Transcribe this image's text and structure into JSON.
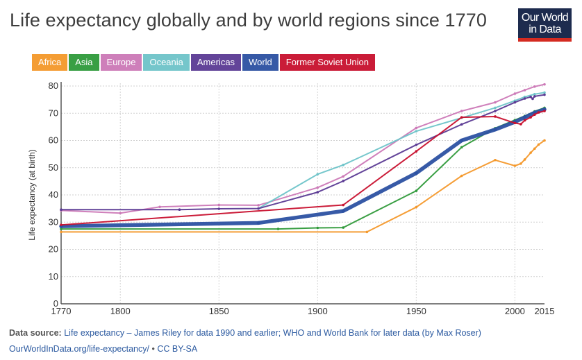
{
  "header": {
    "title": "Life expectancy globally and by world regions since 1770",
    "logo_line1": "Our World",
    "logo_line2": "in Data"
  },
  "footer": {
    "source_label": "Data source:",
    "source_text": "Life expectancy – James Riley for data 1990 and earlier; WHO and World Bank for later data (by Max Roser)",
    "link_text": "OurWorldInData.org/life-expectancy/",
    "separator": "•",
    "license": "CC BY-SA"
  },
  "chart_data": {
    "type": "line",
    "title": "Life expectancy globally and by world regions since 1770",
    "xlabel": "",
    "ylabel": "Life expectancy (at birth)",
    "xlim": [
      1770,
      2015
    ],
    "ylim": [
      0,
      80
    ],
    "x_ticks": [
      1770,
      1800,
      1850,
      1900,
      1950,
      2000,
      2015
    ],
    "y_ticks": [
      0,
      10,
      20,
      30,
      40,
      50,
      60,
      70,
      80
    ],
    "grid": true,
    "legend_position": "top-left",
    "series": [
      {
        "name": "Africa",
        "color": "#f4982a",
        "x": [
          1770,
          1925,
          1950,
          1973,
          1990,
          2000,
          2003,
          2005,
          2008,
          2010,
          2012,
          2015
        ],
        "y": [
          26.4,
          26.4,
          35.5,
          47.0,
          52.8,
          50.7,
          51.5,
          53.0,
          55.5,
          57.0,
          58.5,
          60.0
        ]
      },
      {
        "name": "Asia",
        "color": "#2f9a3a",
        "x": [
          1770,
          1880,
          1900,
          1913,
          1950,
          1973,
          1990,
          2000,
          2005,
          2010,
          2015
        ],
        "y": [
          27.5,
          27.5,
          27.9,
          28.0,
          41.5,
          57.5,
          64.5,
          67.5,
          69.0,
          70.7,
          72.0
        ]
      },
      {
        "name": "Europe",
        "color": "#cc79b7",
        "x": [
          1770,
          1800,
          1820,
          1850,
          1870,
          1900,
          1913,
          1950,
          1973,
          1990,
          2000,
          2005,
          2010,
          2015
        ],
        "y": [
          34.3,
          33.3,
          35.6,
          36.3,
          36.2,
          42.7,
          46.8,
          64.6,
          70.8,
          74.0,
          77.2,
          78.5,
          79.8,
          80.6
        ]
      },
      {
        "name": "Oceania",
        "color": "#6ec4c9",
        "x": [
          1870,
          1900,
          1913,
          1950,
          1973,
          1990,
          2000,
          2005,
          2010,
          2015
        ],
        "y": [
          35.0,
          47.6,
          51.0,
          63.4,
          68.3,
          72.0,
          74.6,
          76.0,
          77.0,
          77.6
        ]
      },
      {
        "name": "Americas",
        "color": "#5b3a94",
        "x": [
          1770,
          1830,
          1850,
          1870,
          1900,
          1913,
          1950,
          1973,
          1990,
          2000,
          2005,
          2008,
          2009,
          2010,
          2015
        ],
        "y": [
          34.6,
          34.6,
          34.9,
          35.0,
          41.0,
          45.1,
          58.4,
          65.9,
          70.8,
          74.0,
          75.4,
          76.0,
          75.3,
          76.2,
          76.8
        ]
      },
      {
        "name": "World",
        "color": "#2c51a2",
        "x": [
          1770,
          1870,
          1913,
          1950,
          1973,
          1990,
          2000,
          2005,
          2010,
          2015
        ],
        "y": [
          28.5,
          29.7,
          34.1,
          48.0,
          60.0,
          64.0,
          66.8,
          68.5,
          70.2,
          71.4
        ]
      },
      {
        "name": "Former Soviet Union",
        "color": "#c8102e",
        "x": [
          1770,
          1913,
          1950,
          1973,
          1990,
          2000,
          2003,
          2005,
          2008,
          2010,
          2012,
          2015
        ],
        "y": [
          29.0,
          36.3,
          56.0,
          68.5,
          68.8,
          66.4,
          66.0,
          67.4,
          68.5,
          69.5,
          70.3,
          70.8
        ]
      }
    ]
  }
}
